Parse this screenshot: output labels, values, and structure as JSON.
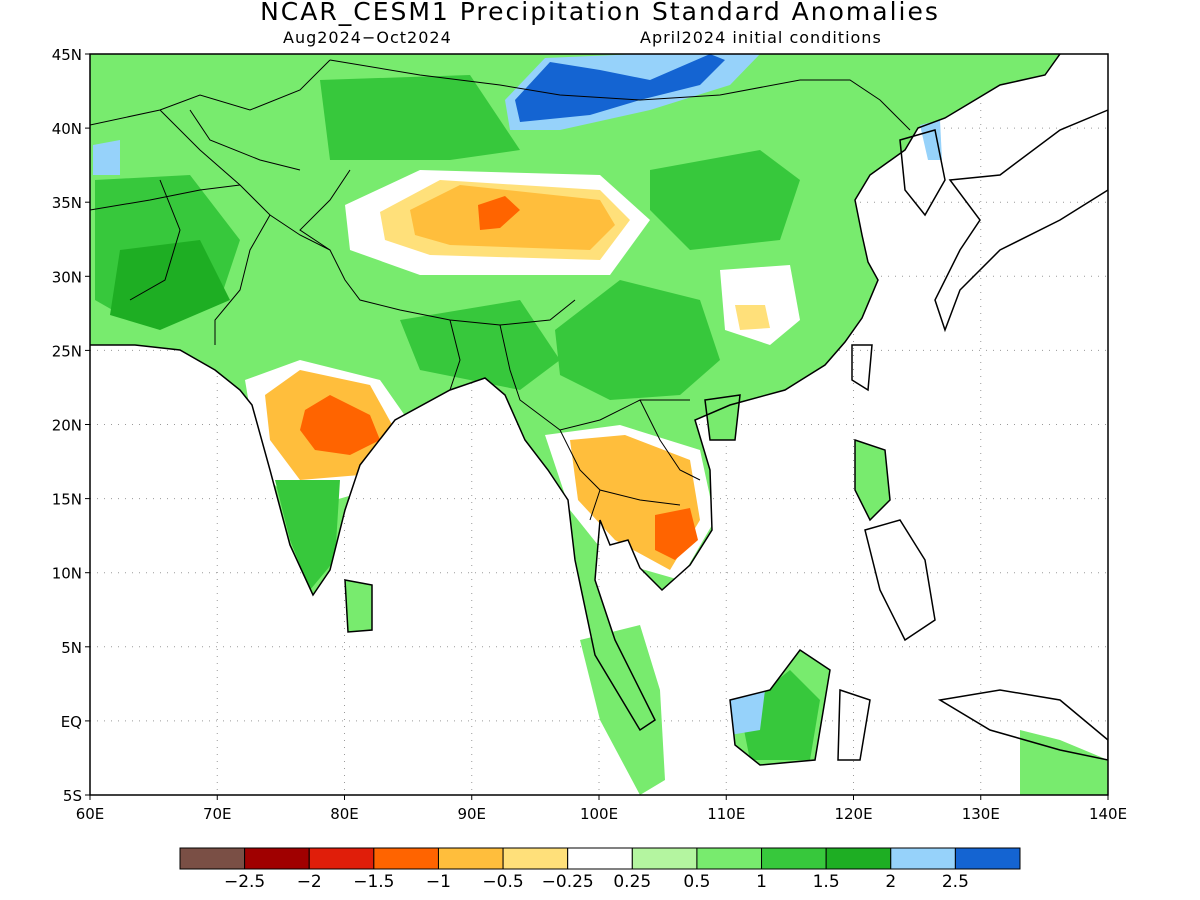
{
  "title": "NCAR_CESM1 Precipitation Standard Anomalies",
  "subtitle_left": "Aug2024−Oct2024",
  "subtitle_right": "April2024 initial conditions",
  "map": {
    "lon_range": [
      60,
      140
    ],
    "lat_range": [
      -5,
      45
    ],
    "lon_ticks": [
      "60E",
      "70E",
      "80E",
      "90E",
      "100E",
      "110E",
      "120E",
      "130E",
      "140E"
    ],
    "lat_ticks": [
      "45N",
      "40N",
      "35N",
      "30N",
      "25N",
      "20N",
      "15N",
      "10N",
      "5N",
      "EQ",
      "5S"
    ],
    "grid": true,
    "features": {
      "coastlines": true,
      "national_borders": true,
      "fill_ocean": "#ffffff"
    }
  },
  "colorbar": {
    "colors": [
      "#7a4f45",
      "#a00000",
      "#e01e0a",
      "#ff6400",
      "#ffbe3c",
      "#ffe07a",
      "#ffffff",
      "#b4f5a0",
      "#78eb6e",
      "#37c83c",
      "#1eae23",
      "#96d2fa",
      "#1464d2"
    ],
    "labels": [
      "−2.5",
      "−2",
      "−1.5",
      "−1",
      "−0.5",
      "−0.25",
      "0.25",
      "0.5",
      "1",
      "1.5",
      "2",
      "2.5"
    ]
  },
  "regions": [
    {
      "name": "land-positive-base",
      "class": "0.5"
    },
    {
      "name": "central-china-positive",
      "class": "1.5"
    },
    {
      "name": "mongolia-positive",
      "class": "1.5"
    },
    {
      "name": "afghanistan-positive",
      "class": "1.5"
    },
    {
      "name": "tibet-negative",
      "class": "-0.5"
    },
    {
      "name": "tibet-core-negative",
      "class": "-1"
    },
    {
      "name": "central-india-negative",
      "class": "-0.5"
    },
    {
      "name": "central-india-core-negative",
      "class": "-1"
    },
    {
      "name": "indochina-negative",
      "class": "-0.5"
    },
    {
      "name": "cambodia-core-negative",
      "class": "-1"
    },
    {
      "name": "mongolia-wet-light",
      "class": "2"
    },
    {
      "name": "mongolia-wet-dark",
      "class": "2.5"
    },
    {
      "name": "borneo-positive",
      "class": "1.5"
    },
    {
      "name": "borneo-wet",
      "class": "2"
    }
  ]
}
